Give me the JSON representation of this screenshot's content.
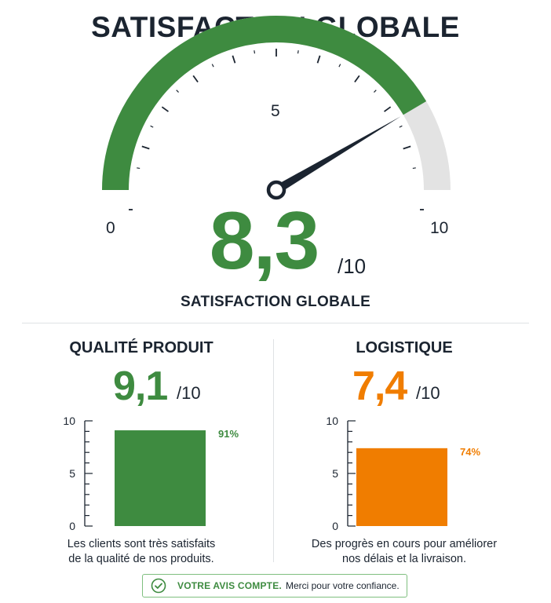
{
  "header": {
    "title": "SATISFACTION GLOBALE"
  },
  "colors": {
    "green": "#3e8b40",
    "orange": "#f07d00",
    "track": "#e3e3e3",
    "text": "#1b2430"
  },
  "chart_data": [
    {
      "type": "gauge",
      "value": 8.3,
      "range": [
        0,
        10
      ],
      "tick_labels": [
        "0",
        "5",
        "10"
      ],
      "score_text": "8,3",
      "max_text": "/10",
      "label": "SATISFACTION GLOBALE"
    },
    {
      "type": "bar",
      "title": "QUALITÉ PRODUIT",
      "score_text": "9,1",
      "max_text": "/10",
      "categories": [
        ""
      ],
      "values": [
        9.1
      ],
      "ylim": [
        0,
        10
      ],
      "y_tick_labels": [
        "10",
        "5",
        "0"
      ],
      "data_label": "91%",
      "color": "#3e8b40",
      "description": [
        "Les clients sont très satisfaits",
        "de la qualité de nos produits."
      ]
    },
    {
      "type": "bar",
      "title": "LOGISTIQUE",
      "score_text": "7,4",
      "max_text": "/10",
      "categories": [
        ""
      ],
      "values": [
        7.4
      ],
      "ylim": [
        0,
        10
      ],
      "y_tick_labels": [
        "10",
        "5",
        "0"
      ],
      "data_label": "74%",
      "color": "#f07d00",
      "description": [
        "Des progrès en cours pour améliorer",
        "nos délais et la livraison."
      ]
    }
  ],
  "footer": {
    "strong": "VOTRE AVIS COMPTE.",
    "text": "Merci pour votre confiance.",
    "icon": "check-circle-icon"
  }
}
